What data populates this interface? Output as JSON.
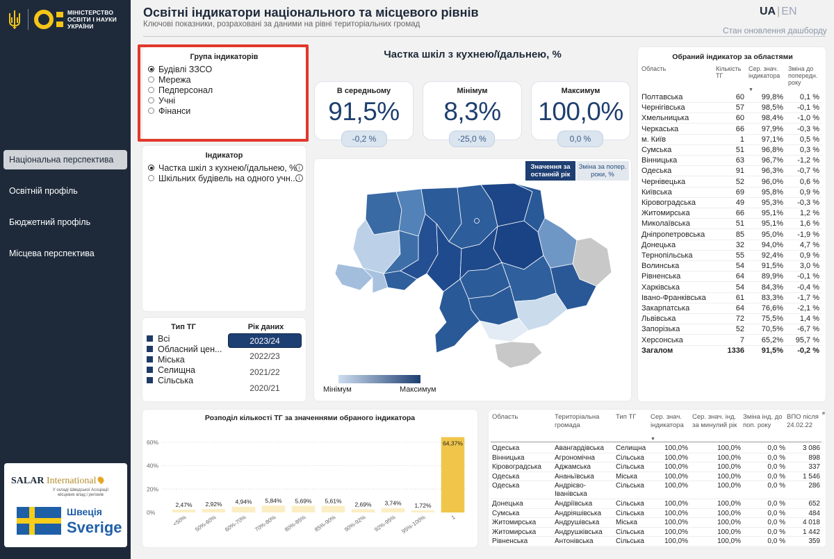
{
  "ministry": {
    "line1": "МІНІСТЕРСТВО",
    "line2": "ОСВІТИ І НАУКИ",
    "line3": "УКРАЇНИ"
  },
  "header": {
    "title": "Освітні індикатори національного та місцевого рівнів",
    "subtitle": "Ключові показники, розраховані за даними на рівні територіальних громад",
    "lang_ua": "UA",
    "lang_sep": "|",
    "lang_en": "EN",
    "update_link": "Стан оновлення дашборду"
  },
  "nav": [
    {
      "label": "Національна перспектива",
      "active": true
    },
    {
      "label": "Освітній профіль",
      "active": false
    },
    {
      "label": "Бюджетний профіль",
      "active": false
    },
    {
      "label": "Місцева перспектива",
      "active": false
    }
  ],
  "partners": {
    "salar_main": "SALAR",
    "salar_int": "International",
    "salar_sub": "У складі Шведської Асоціації місцевих влад і регіонів",
    "sweden_ua": "Швеція",
    "sweden_se": "Sverige"
  },
  "indicator_group": {
    "title": "Група індикаторів",
    "options": [
      {
        "label": "Будівлі ЗЗСО",
        "selected": true
      },
      {
        "label": "Мережа",
        "selected": false
      },
      {
        "label": "Педперсонал",
        "selected": false
      },
      {
        "label": "Учні",
        "selected": false
      },
      {
        "label": "Фінанси",
        "selected": false
      }
    ]
  },
  "indicator": {
    "title": "Індикатор",
    "options": [
      {
        "label": "Частка шкіл з кухнею/їдальнею, %",
        "selected": true
      },
      {
        "label": "Шкільних будівель на одного учн...",
        "selected": false
      }
    ],
    "info_glyph": "i"
  },
  "tg_type": {
    "title": "Тип ТГ",
    "options": [
      "Всі",
      "Обласний цен...",
      "Міська",
      "Селищна",
      "Сільська"
    ]
  },
  "year": {
    "title": "Рік даних",
    "options": [
      {
        "label": "2023/24",
        "selected": true
      },
      {
        "label": "2022/23",
        "selected": false
      },
      {
        "label": "2021/22",
        "selected": false
      },
      {
        "label": "2020/21",
        "selected": false
      }
    ]
  },
  "kpi": {
    "title": "Частка шкіл з кухнею/їдальнею, %",
    "avg": {
      "label": "В середньому",
      "value": "91,5%",
      "delta": "-0,2 %"
    },
    "min": {
      "label": "Мінімум",
      "value": "8,3%",
      "delta": "-25,0 %"
    },
    "max": {
      "label": "Максимум",
      "value": "100,0%",
      "delta": "0,0 %"
    }
  },
  "map": {
    "toggle_current": "Значення за останній рік",
    "toggle_change": "Зміна за попер. роки, %",
    "legend_min": "Мінімум",
    "legend_max": "Максимум",
    "colors": {
      "light": "#cdddef",
      "dark": "#1e3f72",
      "nodata": "#c8c8c8"
    }
  },
  "oblast_table": {
    "title": "Обраний індикатор за областями",
    "headers": {
      "oblast": "Область",
      "count": "Кількість ТГ",
      "avg": "Сер. знач. індикатора",
      "change": "Зміна до попередн. року"
    },
    "rows": [
      [
        "Полтавська",
        "60",
        "99,8%",
        "0,1 %"
      ],
      [
        "Чернігівська",
        "57",
        "98,5%",
        "-0,1 %"
      ],
      [
        "Хмельницька",
        "60",
        "98,4%",
        "-1,0 %"
      ],
      [
        "Черкаська",
        "66",
        "97,9%",
        "-0,3 %"
      ],
      [
        "м. Київ",
        "1",
        "97,1%",
        "0,5 %"
      ],
      [
        "Сумська",
        "51",
        "96,8%",
        "0,3 %"
      ],
      [
        "Вінницька",
        "63",
        "96,7%",
        "-1,2 %"
      ],
      [
        "Одеська",
        "91",
        "96,3%",
        "-0,7 %"
      ],
      [
        "Чернівецька",
        "52",
        "96,0%",
        "0,6 %"
      ],
      [
        "Київська",
        "69",
        "95,8%",
        "0,9 %"
      ],
      [
        "Кіровоградська",
        "49",
        "95,3%",
        "-0,3 %"
      ],
      [
        "Житомирська",
        "66",
        "95,1%",
        "1,2 %"
      ],
      [
        "Миколаївська",
        "51",
        "95,1%",
        "1,6 %"
      ],
      [
        "Дніпропетровська",
        "85",
        "95,0%",
        "-1,9 %"
      ],
      [
        "Донецька",
        "32",
        "94,0%",
        "4,7 %"
      ],
      [
        "Тернопільська",
        "55",
        "92,4%",
        "0,9 %"
      ],
      [
        "Волинська",
        "54",
        "91,5%",
        "3,0 %"
      ],
      [
        "Рівненська",
        "64",
        "89,9%",
        "-0,1 %"
      ],
      [
        "Харківська",
        "54",
        "84,3%",
        "-0,4 %"
      ],
      [
        "Івано-Франківська",
        "61",
        "83,3%",
        "-1,7 %"
      ],
      [
        "Закарпатська",
        "64",
        "76,6%",
        "-2,1 %"
      ],
      [
        "Львівська",
        "72",
        "75,5%",
        "1,4 %"
      ],
      [
        "Запорізька",
        "52",
        "70,5%",
        "-6,7 %"
      ],
      [
        "Херсонська",
        "7",
        "65,2%",
        "95,7 %"
      ]
    ],
    "total": [
      "Загалом",
      "1336",
      "91,5%",
      "-0,2 %"
    ]
  },
  "chart_data": {
    "type": "bar",
    "title": "Розподіл кількості ТГ за значеннями обраного індикатора",
    "categories": [
      "<50%",
      "50%-60%",
      "60%-70%",
      "70%-80%",
      "80%-85%",
      "85%-90%",
      "90%-92%",
      "92%-95%",
      "95%-100%",
      "1"
    ],
    "values": [
      2.47,
      2.92,
      4.94,
      5.84,
      5.69,
      5.61,
      2.69,
      3.74,
      1.72,
      64.37
    ],
    "value_labels": [
      "2,47%",
      "2,92%",
      "4,94%",
      "5,84%",
      "5,69%",
      "5,61%",
      "2,69%",
      "3,74%",
      "1,72%",
      "64,37%"
    ],
    "y_ticks": [
      "0%",
      "20%",
      "40%",
      "60%"
    ],
    "ylim": [
      0,
      70
    ],
    "colors": {
      "bar": "#fbeec4",
      "highlight": "#f0c64a"
    }
  },
  "tg_table": {
    "headers": {
      "oblast": "Область",
      "hromada": "Територіальна громада",
      "type": "Тип ТГ",
      "avg": "Сер. знач. індикатора",
      "prev": "Сер. знач. інд. за минулий рік",
      "change": "Зміна інд. до поп. року",
      "vpo": "ВПО після 24.02.22"
    },
    "rows": [
      [
        "Одеська",
        "Авангардівська",
        "Селищна",
        "100,0%",
        "100,0%",
        "0,0 %",
        "3 086"
      ],
      [
        "Вінницька",
        "Агрономічна",
        "Сільська",
        "100,0%",
        "100,0%",
        "0,0 %",
        "898"
      ],
      [
        "Кіровоградська",
        "Аджамська",
        "Сільська",
        "100,0%",
        "100,0%",
        "0,0 %",
        "337"
      ],
      [
        "Одеська",
        "Ананьївська",
        "Міська",
        "100,0%",
        "100,0%",
        "0,0 %",
        "1 546"
      ],
      [
        "Одеська",
        "Андрієво-Іванівська",
        "Сільська",
        "100,0%",
        "100,0%",
        "0,0 %",
        "286"
      ],
      [
        "Донецька",
        "Андріївська",
        "Сільська",
        "100,0%",
        "100,0%",
        "0,0 %",
        "652"
      ],
      [
        "Сумська",
        "Андріяшівська",
        "Сільська",
        "100,0%",
        "100,0%",
        "0,0 %",
        "484"
      ],
      [
        "Житомирська",
        "Андрушівська",
        "Міська",
        "100,0%",
        "100,0%",
        "0,0 %",
        "4 018"
      ],
      [
        "Житомирська",
        "Андрушківська",
        "Сільська",
        "100,0%",
        "100,0%",
        "0,0 %",
        "1 442"
      ],
      [
        "Рівненська",
        "Антонівська",
        "Сільська",
        "100,0%",
        "100,0%",
        "0,0 %",
        "359"
      ]
    ]
  }
}
